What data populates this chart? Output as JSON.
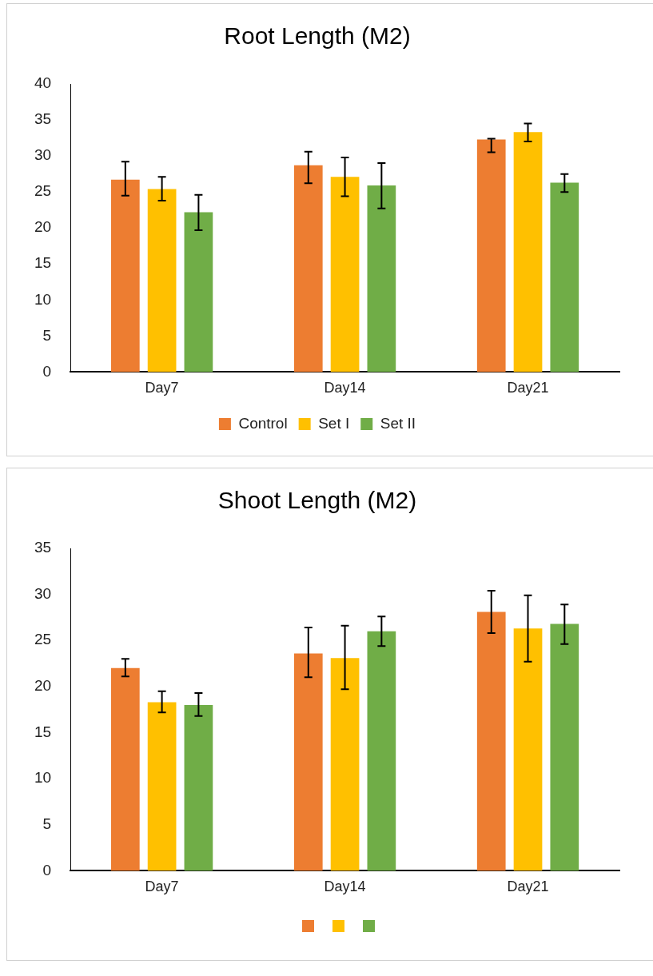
{
  "chart_data": [
    {
      "type": "bar",
      "title": "Root Length (M2)",
      "categories": [
        "Day7",
        "Day14",
        "Day21"
      ],
      "series": [
        {
          "name": "Control",
          "color": "#ed7d31",
          "values": [
            26.7,
            28.7,
            32.3
          ],
          "errors": [
            [
              24.5,
              29.2
            ],
            [
              26.2,
              30.6
            ],
            [
              30.5,
              32.4
            ]
          ]
        },
        {
          "name": "Set I",
          "color": "#ffc000",
          "values": [
            25.4,
            27.1,
            33.3
          ],
          "errors": [
            [
              23.8,
              27.1
            ],
            [
              24.4,
              29.8
            ],
            [
              32.0,
              34.5
            ]
          ]
        },
        {
          "name": "Set II",
          "color": "#70ad47",
          "values": [
            22.2,
            25.9,
            26.3
          ],
          "errors": [
            [
              19.7,
              24.6
            ],
            [
              22.7,
              29.0
            ],
            [
              25.0,
              27.5
            ]
          ]
        }
      ],
      "ylim": [
        0,
        40
      ],
      "yticks": [
        0,
        5,
        10,
        15,
        20,
        25,
        30,
        35,
        40
      ],
      "grid": false,
      "legend": "bottom"
    },
    {
      "type": "bar",
      "title": "Shoot Length (M2)",
      "categories": [
        "Day7",
        "Day14",
        "Day21"
      ],
      "series": [
        {
          "color": "#ed7d31",
          "values": [
            22.0,
            23.6,
            28.1
          ],
          "errors": [
            [
              21.1,
              23.0
            ],
            [
              21.0,
              26.4
            ],
            [
              25.8,
              30.4
            ]
          ]
        },
        {
          "color": "#ffc000",
          "values": [
            18.3,
            23.1,
            26.3
          ],
          "errors": [
            [
              17.2,
              19.5
            ],
            [
              19.7,
              26.6
            ],
            [
              22.7,
              29.9
            ]
          ]
        },
        {
          "color": "#70ad47",
          "values": [
            18.0,
            26.0,
            26.8
          ],
          "errors": [
            [
              16.8,
              19.3
            ],
            [
              24.4,
              27.6
            ],
            [
              24.6,
              28.9
            ]
          ]
        }
      ],
      "ylim": [
        0,
        35
      ],
      "yticks": [
        0,
        5,
        10,
        15,
        20,
        25,
        30,
        35
      ],
      "grid": false,
      "legend": "bottom"
    }
  ]
}
